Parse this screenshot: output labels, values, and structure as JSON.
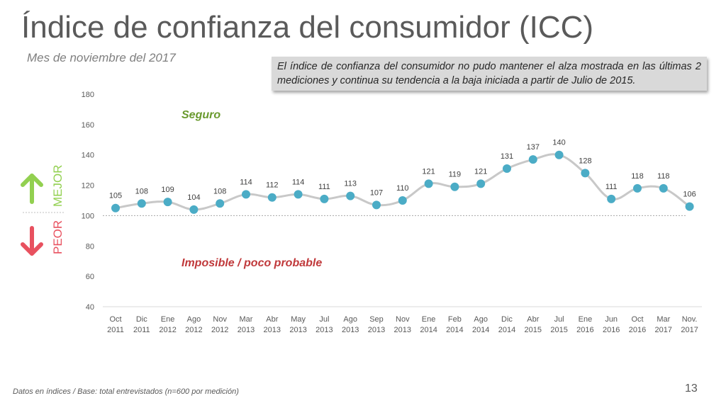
{
  "slide": {
    "title": "Índice de confianza del consumidor (ICC)",
    "subtitle": "Mes de noviembre del 2017",
    "note": "El índice de confianza del consumidor no  pudo mantener el  alza mostrada en las últimas 2 mediciones y continua su tendencia a la baja iniciada a partir de Julio de 2015.",
    "footer": "Datos en índices / Base: total entrevistados (n=600 por medición)",
    "page_number": "13"
  },
  "side_scale": {
    "mejor_label": "MEJOR",
    "peor_label": "PEOR",
    "up_icon": "up-arrow-icon",
    "down_icon": "down-arrow-icon",
    "up_color": "#92d050",
    "down_color": "#e8515f"
  },
  "chart_data": {
    "type": "line",
    "title": "",
    "xlabel": "",
    "ylabel": "",
    "ylim": [
      40,
      180
    ],
    "yticks": [
      "40",
      "60",
      "80",
      "100",
      "120",
      "140",
      "160",
      "180"
    ],
    "reference_line": 100,
    "grid": false,
    "categories": [
      [
        "Oct",
        "2011"
      ],
      [
        "Dic",
        "2011"
      ],
      [
        "Ene",
        "2012"
      ],
      [
        "Ago",
        "2012"
      ],
      [
        "Nov",
        "2012"
      ],
      [
        "Mar",
        "2013"
      ],
      [
        "Abr",
        "2013"
      ],
      [
        "May",
        "2013"
      ],
      [
        "Jul",
        "2013"
      ],
      [
        "Ago",
        "2013"
      ],
      [
        "Sep",
        "2013"
      ],
      [
        "Nov",
        "2013"
      ],
      [
        "Ene",
        "2014"
      ],
      [
        "Feb",
        "2014"
      ],
      [
        "Ago",
        "2014"
      ],
      [
        "Dic",
        "2014"
      ],
      [
        "Abr",
        "2015"
      ],
      [
        "Jul",
        "2015"
      ],
      [
        "Ene",
        "2016"
      ],
      [
        "Jun",
        "2016"
      ],
      [
        "Oct",
        "2016"
      ],
      [
        "Mar",
        "2017"
      ],
      [
        "Nov.",
        "2017"
      ]
    ],
    "series": [
      {
        "values": [
          105,
          108,
          109,
          104,
          108,
          114,
          112,
          114,
          111,
          113,
          107,
          110,
          121,
          119,
          121,
          131,
          137,
          140,
          128,
          111,
          118,
          118,
          106
        ],
        "line_color": "#c8c8c8",
        "marker_color": "#4bacc6"
      }
    ],
    "annotations": [
      {
        "text": "Seguro",
        "color": "#6a9a2e"
      },
      {
        "text": "Imposible / poco probable",
        "color": "#c0393b"
      }
    ]
  }
}
